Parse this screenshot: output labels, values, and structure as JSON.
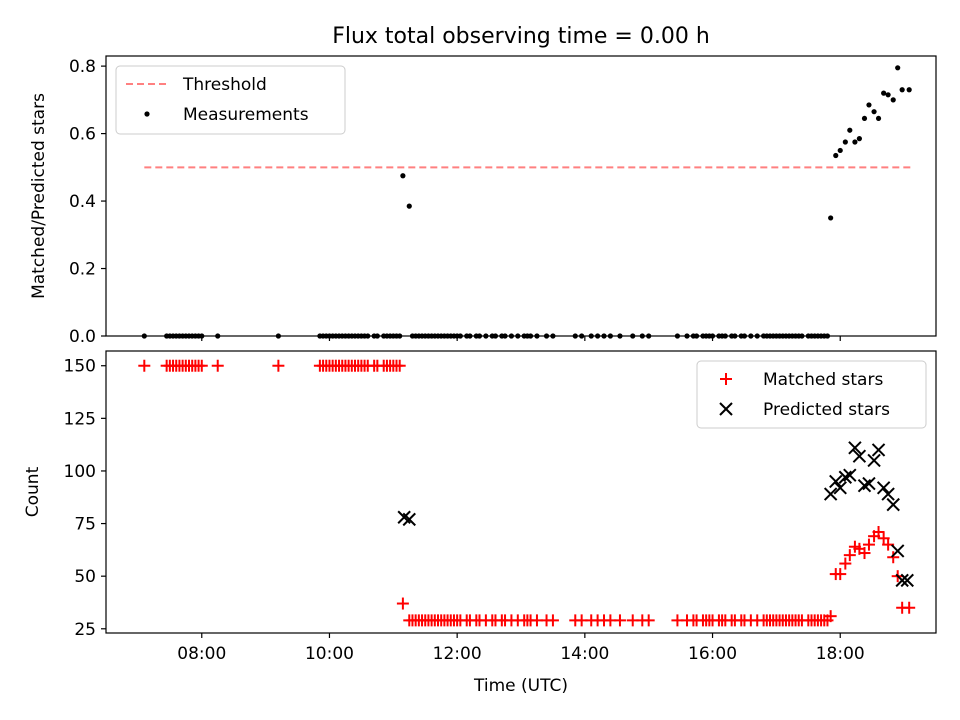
{
  "chart_data": [
    {
      "type": "scatter",
      "title": "Flux total observing time = 0.00 h",
      "xlabel": "",
      "ylabel": "Matched/Predicted stars",
      "xlim": [
        6.5,
        19.5
      ],
      "ylim": [
        0.0,
        0.83
      ],
      "yticks": [
        0.0,
        0.2,
        0.4,
        0.6,
        0.8
      ],
      "ytick_labels": [
        "0.0",
        "0.2",
        "0.4",
        "0.6",
        "0.8"
      ],
      "legend": {
        "placement": "top-left",
        "entries": [
          "Threshold",
          "Measurements"
        ]
      },
      "threshold": {
        "name": "Threshold",
        "y": 0.5,
        "x": [
          7.1,
          19.1
        ],
        "color": "#ff8080"
      },
      "series": [
        {
          "name": "Measurements",
          "marker": "dot",
          "color": "#000000",
          "x": [
            7.1,
            7.45,
            7.5,
            7.55,
            7.6,
            7.65,
            7.7,
            7.75,
            7.8,
            7.85,
            7.9,
            7.95,
            8.0,
            8.25,
            9.2,
            9.85,
            9.9,
            9.95,
            10.0,
            10.05,
            10.1,
            10.15,
            10.2,
            10.25,
            10.3,
            10.35,
            10.4,
            10.45,
            10.5,
            10.55,
            10.6,
            10.7,
            10.75,
            10.85,
            10.9,
            10.95,
            11.0,
            11.05,
            11.1,
            11.15,
            11.25,
            11.3,
            11.35,
            11.4,
            11.45,
            11.5,
            11.55,
            11.6,
            11.65,
            11.7,
            11.75,
            11.8,
            11.85,
            11.9,
            11.95,
            12.0,
            12.05,
            12.15,
            12.2,
            12.3,
            12.35,
            12.45,
            12.55,
            12.6,
            12.7,
            12.75,
            12.85,
            12.95,
            13.05,
            13.1,
            13.15,
            13.25,
            13.4,
            13.5,
            13.85,
            13.95,
            14.1,
            14.2,
            14.3,
            14.4,
            14.55,
            14.75,
            14.9,
            15.0,
            15.45,
            15.6,
            15.7,
            15.75,
            15.85,
            15.9,
            15.95,
            16.0,
            16.1,
            16.15,
            16.2,
            16.3,
            16.35,
            16.45,
            16.5,
            16.6,
            16.7,
            16.8,
            16.85,
            16.9,
            16.95,
            17.0,
            17.05,
            17.1,
            17.15,
            17.2,
            17.25,
            17.3,
            17.35,
            17.4,
            17.5,
            17.55,
            17.6,
            17.65,
            17.7,
            17.75,
            17.8,
            17.85,
            17.93,
            18.0,
            18.08,
            18.15,
            18.23,
            18.3,
            18.38,
            18.45,
            18.53,
            18.6,
            18.68,
            18.75,
            18.83,
            18.9,
            18.97,
            19.08
          ],
          "y": [
            0.0,
            0.0,
            0.0,
            0.0,
            0.0,
            0.0,
            0.0,
            0.0,
            0.0,
            0.0,
            0.0,
            0.0,
            0.0,
            0.0,
            0.0,
            0.0,
            0.0,
            0.0,
            0.0,
            0.0,
            0.0,
            0.0,
            0.0,
            0.0,
            0.0,
            0.0,
            0.0,
            0.0,
            0.0,
            0.0,
            0.0,
            0.0,
            0.0,
            0.0,
            0.0,
            0.0,
            0.0,
            0.0,
            0.0,
            0.475,
            0.385,
            0.0,
            0.0,
            0.0,
            0.0,
            0.0,
            0.0,
            0.0,
            0.0,
            0.0,
            0.0,
            0.0,
            0.0,
            0.0,
            0.0,
            0.0,
            0.0,
            0.0,
            0.0,
            0.0,
            0.0,
            0.0,
            0.0,
            0.0,
            0.0,
            0.0,
            0.0,
            0.0,
            0.0,
            0.0,
            0.0,
            0.0,
            0.0,
            0.0,
            0.0,
            0.0,
            0.0,
            0.0,
            0.0,
            0.0,
            0.0,
            0.0,
            0.0,
            0.0,
            0.0,
            0.0,
            0.0,
            0.0,
            0.0,
            0.0,
            0.0,
            0.0,
            0.0,
            0.0,
            0.0,
            0.0,
            0.0,
            0.0,
            0.0,
            0.0,
            0.0,
            0.0,
            0.0,
            0.0,
            0.0,
            0.0,
            0.0,
            0.0,
            0.0,
            0.0,
            0.0,
            0.0,
            0.0,
            0.0,
            0.0,
            0.0,
            0.0,
            0.0,
            0.0,
            0.0,
            0.0,
            0.35,
            0.535,
            0.55,
            0.575,
            0.61,
            0.575,
            0.585,
            0.645,
            0.685,
            0.665,
            0.645,
            0.72,
            0.715,
            0.7,
            0.795,
            0.73,
            0.73
          ]
        }
      ]
    },
    {
      "type": "scatter",
      "title": "",
      "xlabel": "Time (UTC)",
      "ylabel": "Count",
      "xlim": [
        6.5,
        19.5
      ],
      "ylim": [
        23,
        157
      ],
      "yticks": [
        25,
        50,
        75,
        100,
        125,
        150
      ],
      "ytick_labels": [
        "25",
        "50",
        "75",
        "100",
        "125",
        "150"
      ],
      "xticks": [
        8,
        10,
        12,
        14,
        16,
        18
      ],
      "xtick_labels": [
        "08:00",
        "10:00",
        "12:00",
        "14:00",
        "16:00",
        "18:00"
      ],
      "legend": {
        "placement": "top-right",
        "entries": [
          "Matched stars",
          "Predicted stars"
        ]
      },
      "series": [
        {
          "name": "Matched stars",
          "marker": "plus",
          "color": "#ff0000",
          "x": [
            7.1,
            7.45,
            7.5,
            7.55,
            7.6,
            7.65,
            7.7,
            7.75,
            7.8,
            7.85,
            7.9,
            7.95,
            8.0,
            8.25,
            9.2,
            9.85,
            9.9,
            9.95,
            10.0,
            10.05,
            10.1,
            10.15,
            10.2,
            10.25,
            10.3,
            10.35,
            10.4,
            10.45,
            10.5,
            10.55,
            10.6,
            10.7,
            10.75,
            10.85,
            10.9,
            10.95,
            11.0,
            11.05,
            11.1,
            11.15,
            11.25,
            11.3,
            11.35,
            11.4,
            11.45,
            11.5,
            11.55,
            11.6,
            11.65,
            11.7,
            11.75,
            11.8,
            11.85,
            11.9,
            11.95,
            12.0,
            12.05,
            12.15,
            12.2,
            12.3,
            12.35,
            12.45,
            12.55,
            12.6,
            12.7,
            12.75,
            12.85,
            12.95,
            13.05,
            13.1,
            13.15,
            13.25,
            13.4,
            13.5,
            13.85,
            13.95,
            14.1,
            14.2,
            14.3,
            14.4,
            14.55,
            14.75,
            14.9,
            15.0,
            15.45,
            15.6,
            15.7,
            15.75,
            15.85,
            15.9,
            15.95,
            16.0,
            16.1,
            16.15,
            16.2,
            16.3,
            16.35,
            16.45,
            16.5,
            16.6,
            16.7,
            16.8,
            16.85,
            16.9,
            16.95,
            17.0,
            17.05,
            17.1,
            17.15,
            17.2,
            17.25,
            17.3,
            17.35,
            17.4,
            17.5,
            17.55,
            17.6,
            17.65,
            17.7,
            17.75,
            17.8,
            17.85,
            17.93,
            18.0,
            18.08,
            18.15,
            18.23,
            18.3,
            18.38,
            18.45,
            18.53,
            18.6,
            18.68,
            18.75,
            18.83,
            18.9,
            18.97,
            19.08
          ],
          "y": [
            150,
            150,
            150,
            150,
            150,
            150,
            150,
            150,
            150,
            150,
            150,
            150,
            150,
            150,
            150,
            150,
            150,
            150,
            150,
            150,
            150,
            150,
            150,
            150,
            150,
            150,
            150,
            150,
            150,
            150,
            150,
            150,
            150,
            150,
            150,
            150,
            150,
            150,
            150,
            37,
            29,
            29,
            29,
            29,
            29,
            29,
            29,
            29,
            29,
            29,
            29,
            29,
            29,
            29,
            29,
            29,
            29,
            29,
            29,
            29,
            29,
            29,
            29,
            29,
            29,
            29,
            29,
            29,
            29,
            29,
            29,
            29,
            29,
            29,
            29,
            29,
            29,
            29,
            29,
            29,
            29,
            29,
            29,
            29,
            29,
            29,
            29,
            29,
            29,
            29,
            29,
            29,
            29,
            29,
            29,
            29,
            29,
            29,
            29,
            29,
            29,
            29,
            29,
            29,
            29,
            29,
            29,
            29,
            29,
            29,
            29,
            29,
            29,
            29,
            29,
            29,
            29,
            29,
            29,
            29,
            29,
            31,
            51,
            51,
            56,
            60,
            64,
            63,
            61,
            65,
            69,
            71,
            68,
            65,
            59,
            50,
            35,
            35
          ]
        },
        {
          "name": "Predicted stars",
          "marker": "x",
          "color": "#000000",
          "x": [
            11.17,
            11.25,
            17.85,
            17.93,
            18.0,
            18.08,
            18.15,
            18.23,
            18.3,
            18.38,
            18.45,
            18.53,
            18.6,
            18.68,
            18.75,
            18.83,
            18.9,
            18.97,
            19.05
          ],
          "y": [
            78,
            77,
            89,
            95,
            92,
            97,
            98,
            111,
            107,
            93,
            94,
            105,
            110,
            92,
            89,
            84,
            62,
            48,
            48
          ]
        }
      ]
    }
  ]
}
